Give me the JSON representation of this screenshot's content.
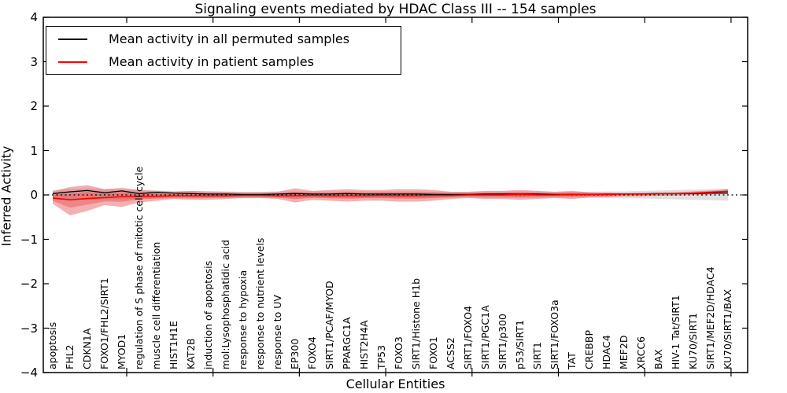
{
  "title": "Signaling events mediated by HDAC Class III -- 154 samples",
  "legend": {
    "items": [
      {
        "label": "Mean activity in all permuted samples",
        "color": "#000000"
      },
      {
        "label": "Mean activity in patient samples",
        "color": "#ff0000"
      }
    ]
  },
  "colors": {
    "patient_line": "#ff0000",
    "permuted_line": "#000000",
    "patient_band": "#e03030",
    "permuted_band": "#999999",
    "axis": "#000000"
  },
  "chart_data": {
    "type": "line",
    "title": "Signaling events mediated by HDAC Class III -- 154 samples",
    "xlabel": "Cellular Entities",
    "ylabel": "Inferred Activity",
    "ylim": [
      -4,
      4
    ],
    "ytick_values": [
      4,
      3,
      2,
      1,
      0,
      -1,
      -2,
      -3,
      -4
    ],
    "ytick_labels": [
      "4",
      "3",
      "2",
      "1",
      "0",
      "−1",
      "−2",
      "−3",
      "−4"
    ],
    "grid": false,
    "zero_reference_line": 0,
    "legend_position": "upper left",
    "categories": [
      "apoptosis",
      "FHL2",
      "CDKN1A",
      "FOXO1/FHL2/SIRT1",
      "MYOD1",
      "regulation of S phase of mitotic cell cycle",
      "muscle cell differentiation",
      "HIST1H1E",
      "KAT2B",
      "induction of apoptosis",
      "mol:Lysophosphatidic acid",
      "response to hypoxia",
      "response to nutrient levels",
      "response to UV",
      "EP300",
      "FOXO4",
      "SIRT1/PCAF/MYOD",
      "PPARGC1A",
      "HIST2H4A",
      "TP53",
      "FOXO3",
      "SIRT1/Histone H1b",
      "FOXO1",
      "ACSS2",
      "SIRT1/FOXO4",
      "SIRT1/PGC1A",
      "SIRT1/p300",
      "p53/SIRT1",
      "SIRT1",
      "SIRT1/FOXO3a",
      "TAT",
      "CREBBP",
      "HDAC4",
      "MEF2D",
      "XRCC6",
      "BAX",
      "HIV-1 Tat/SIRT1",
      "KU70/SIRT1",
      "SIRT1/MEF2D/HDAC4",
      "KU70/SIRT1/BAX"
    ],
    "series": [
      {
        "name": "Mean activity in all permuted samples",
        "type": "line",
        "color": "#000000",
        "values": [
          0.03,
          0.07,
          0.1,
          0.05,
          0.09,
          0.03,
          0.06,
          0.04,
          0.03,
          0.02,
          0.02,
          0.01,
          0.01,
          0.02,
          0.03,
          0.02,
          0.02,
          0.03,
          0.02,
          0.02,
          0.02,
          0.02,
          0.01,
          0.01,
          0.01,
          0.02,
          0.02,
          0.02,
          0.02,
          0.01,
          0.01,
          0.01,
          0.02,
          0.02,
          0.02,
          0.03,
          0.03,
          0.03,
          0.04,
          0.04
        ]
      },
      {
        "name": "Mean activity in patient samples",
        "type": "line",
        "color": "#ff0000",
        "values": [
          -0.07,
          -0.11,
          -0.08,
          -0.06,
          -0.04,
          -0.03,
          -0.03,
          -0.02,
          -0.02,
          -0.02,
          -0.02,
          -0.01,
          -0.01,
          -0.02,
          -0.02,
          -0.01,
          -0.02,
          -0.02,
          -0.02,
          -0.01,
          -0.02,
          -0.02,
          -0.01,
          -0.01,
          0.0,
          0.0,
          0.0,
          0.01,
          0.0,
          0.0,
          0.01,
          0.01,
          0.01,
          0.02,
          0.02,
          0.03,
          0.03,
          0.04,
          0.06,
          0.08
        ]
      },
      {
        "name": "Permuted samples envelope",
        "type": "band",
        "color": "#999999",
        "upper": [
          0.11,
          0.13,
          0.15,
          0.13,
          0.13,
          0.11,
          0.1,
          0.09,
          0.09,
          0.08,
          0.08,
          0.07,
          0.07,
          0.08,
          0.08,
          0.08,
          0.08,
          0.08,
          0.08,
          0.08,
          0.08,
          0.08,
          0.07,
          0.07,
          0.07,
          0.08,
          0.08,
          0.08,
          0.08,
          0.07,
          0.07,
          0.07,
          0.08,
          0.08,
          0.09,
          0.1,
          0.11,
          0.12,
          0.13,
          0.14
        ],
        "lower": [
          -0.09,
          -0.11,
          -0.11,
          -0.1,
          -0.1,
          -0.09,
          -0.08,
          -0.08,
          -0.08,
          -0.07,
          -0.07,
          -0.07,
          -0.07,
          -0.07,
          -0.08,
          -0.07,
          -0.07,
          -0.08,
          -0.07,
          -0.07,
          -0.07,
          -0.08,
          -0.07,
          -0.06,
          -0.06,
          -0.07,
          -0.07,
          -0.07,
          -0.07,
          -0.06,
          -0.06,
          -0.06,
          -0.07,
          -0.08,
          -0.08,
          -0.09,
          -0.1,
          -0.11,
          -0.12,
          -0.13
        ]
      },
      {
        "name": "Patient samples envelope",
        "type": "band",
        "color": "#e03030",
        "upper": [
          0.08,
          0.18,
          0.22,
          0.13,
          0.16,
          0.11,
          0.09,
          0.07,
          0.09,
          0.08,
          0.07,
          0.06,
          0.06,
          0.07,
          0.15,
          0.09,
          0.11,
          0.13,
          0.11,
          0.11,
          0.13,
          0.13,
          0.11,
          0.07,
          0.07,
          0.09,
          0.09,
          0.11,
          0.09,
          0.07,
          0.09,
          0.06,
          0.05,
          0.04,
          0.05,
          0.05,
          0.06,
          0.08,
          0.1,
          0.13
        ],
        "lower": [
          -0.2,
          -0.46,
          -0.36,
          -0.23,
          -0.27,
          -0.17,
          -0.13,
          -0.09,
          -0.11,
          -0.11,
          -0.09,
          -0.07,
          -0.07,
          -0.09,
          -0.17,
          -0.11,
          -0.13,
          -0.15,
          -0.13,
          -0.13,
          -0.15,
          -0.15,
          -0.13,
          -0.09,
          -0.07,
          -0.09,
          -0.09,
          -0.11,
          -0.09,
          -0.07,
          -0.09,
          -0.06,
          -0.05,
          -0.03,
          -0.03,
          -0.02,
          -0.01,
          0.0,
          0.01,
          0.03
        ]
      }
    ]
  }
}
